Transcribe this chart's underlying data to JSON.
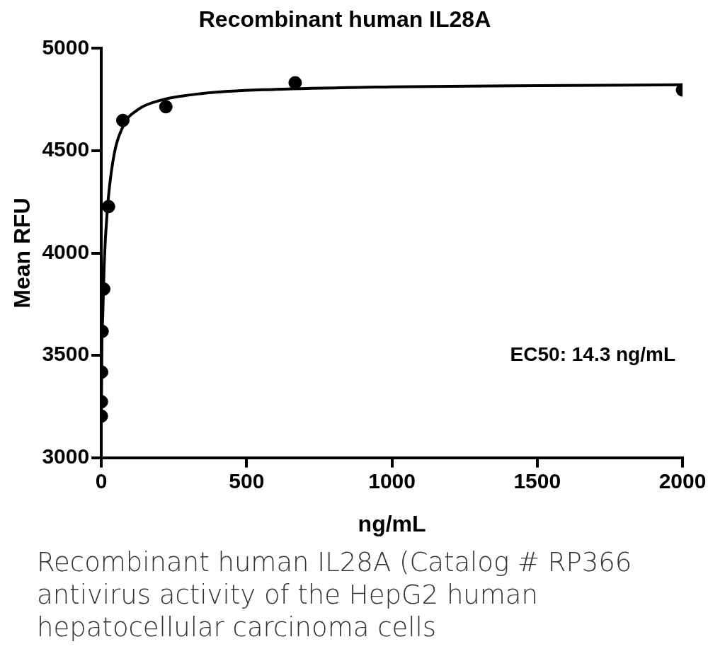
{
  "chart_data": {
    "type": "scatter",
    "title": "Recombinant human IL28A",
    "xlabel": "ng/mL",
    "ylabel": "Mean RFU",
    "series": [
      {
        "color": "#000000",
        "marker": "circle",
        "x": [
          0.1,
          0.3,
          0.9,
          2.7,
          8.2,
          24.7,
          74,
          222,
          667,
          2000
        ],
        "values": [
          3203,
          3273,
          3418,
          3617,
          3824,
          4227,
          4648,
          4715,
          4832,
          4797
        ]
      },
      {
        "type": "line",
        "color": "#000000",
        "marker": "none",
        "x": [
          0,
          2,
          5,
          10,
          20,
          40,
          75,
          125,
          200,
          350,
          600,
          1000,
          1500,
          2000
        ],
        "values": [
          3200,
          3550,
          3700,
          3950,
          4200,
          4450,
          4620,
          4700,
          4745,
          4780,
          4800,
          4812,
          4818,
          4822
        ]
      }
    ],
    "xlim": [
      0,
      2000
    ],
    "xticks": [
      0,
      500,
      1000,
      1500,
      2000
    ],
    "ylim": [
      3000,
      5000
    ],
    "yticks": [
      3000,
      3500,
      4000,
      4500,
      5000
    ],
    "grid": false,
    "legend": false,
    "annotations": [
      "EC50: 14.3 ng/mL",
      "Recombinant human IL28A (Catalog # RP366",
      "antivirus activity of the HepG2 human",
      "hepatocellular carcinoma cells"
    ]
  }
}
